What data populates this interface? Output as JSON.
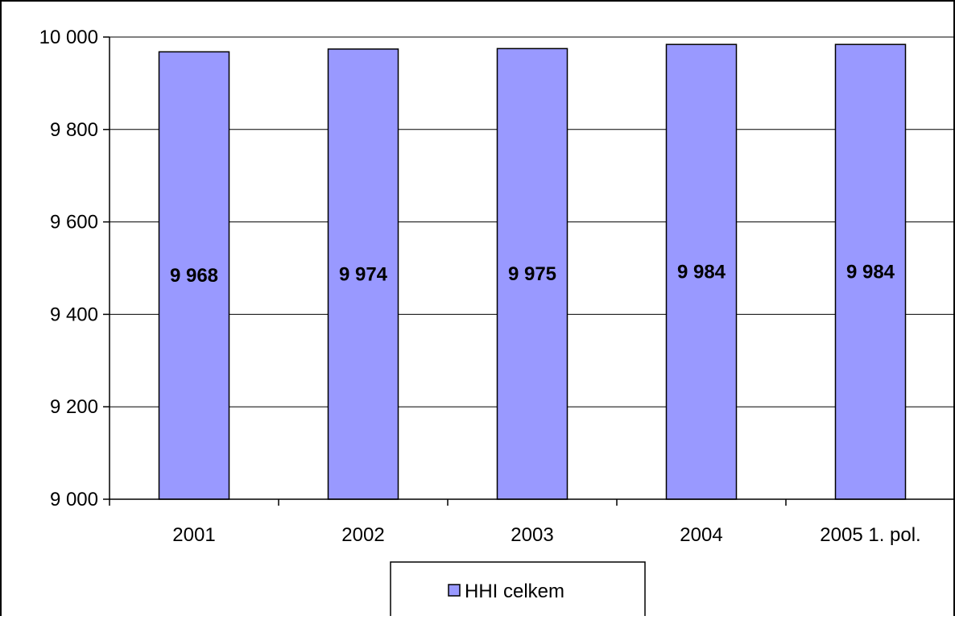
{
  "chart_data": {
    "type": "bar",
    "categories": [
      "2001",
      "2002",
      "2003",
      "2004",
      "2005 1. pol."
    ],
    "series": [
      {
        "name": "HHI celkem",
        "values": [
          9968,
          9974,
          9975,
          9984,
          9984
        ],
        "data_labels": [
          "9 968",
          "9 974",
          "9 975",
          "9 984",
          "9 984"
        ],
        "color": "#9999FF"
      }
    ],
    "ylim": [
      9000,
      10000
    ],
    "yticks": [
      9000,
      9200,
      9400,
      9600,
      9800,
      10000
    ],
    "ytick_labels": [
      "9 000",
      "9 200",
      "9 400",
      "9 600",
      "9 800",
      "10 000"
    ],
    "title": "",
    "xlabel": "",
    "ylabel": "",
    "grid": true,
    "legend_position": "bottom"
  },
  "legend": {
    "label": "HHI celkem"
  },
  "colors": {
    "bar_fill": "#9999FF",
    "bar_stroke": "#000000",
    "grid": "#000000",
    "background": "#FFFFFF"
  }
}
